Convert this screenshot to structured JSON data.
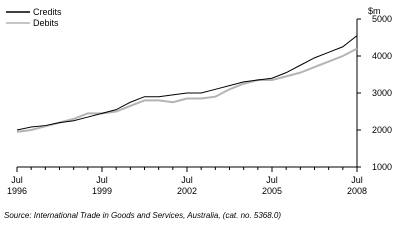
{
  "chart_data": {
    "type": "line",
    "y_unit": "$m",
    "source": "Source: International Trade in Goods and Services, Australia, (cat. no. 5368.0)",
    "categories": [
      "Jul 1996",
      null,
      null,
      null,
      null,
      null,
      "Jul 1999",
      null,
      null,
      null,
      null,
      null,
      "Jul 2002",
      null,
      null,
      null,
      null,
      null,
      "Jul 2005",
      null,
      null,
      null,
      null,
      null,
      "Jul 2008"
    ],
    "series": [
      {
        "name": "Credits",
        "color": "#000000",
        "values": [
          2000,
          2080,
          2120,
          2200,
          2250,
          2350,
          2450,
          2550,
          2750,
          2900,
          2900,
          2950,
          3000,
          3000,
          3100,
          3200,
          3300,
          3350,
          3400,
          3550,
          3750,
          3950,
          4100,
          4250,
          4550
        ]
      },
      {
        "name": "Debits",
        "color": "#b4b4b4",
        "values": [
          1950,
          2000,
          2100,
          2200,
          2300,
          2450,
          2450,
          2500,
          2650,
          2800,
          2800,
          2750,
          2850,
          2850,
          2900,
          3100,
          3250,
          3350,
          3350,
          3450,
          3550,
          3700,
          3850,
          4000,
          4200
        ]
      }
    ],
    "ylim": [
      1000,
      5000
    ],
    "yticks": [
      1000,
      2000,
      3000,
      4000,
      5000
    ],
    "legend": "top-left"
  }
}
